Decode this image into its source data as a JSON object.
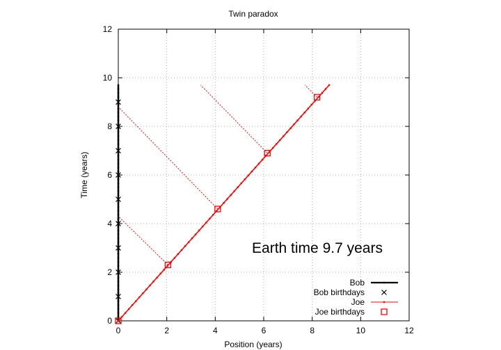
{
  "chart_data": {
    "type": "line",
    "title": "Twin paradox",
    "xlabel": "Position (years)",
    "ylabel": "Time (years)",
    "xlim": [
      0,
      12
    ],
    "ylim": [
      0,
      12
    ],
    "xticks": [
      0,
      2,
      4,
      6,
      8,
      10,
      12
    ],
    "yticks": [
      0,
      2,
      4,
      6,
      8,
      10,
      12
    ],
    "grid": true,
    "legend_position": "bottom-right",
    "annotation": "Earth time  9.7 years",
    "colors": {
      "bob": "#000000",
      "joe": "#ff0000"
    },
    "series": [
      {
        "name": "Bob",
        "style": "line",
        "color": "#000000",
        "x": [
          0,
          0
        ],
        "y": [
          0,
          9.7
        ]
      },
      {
        "name": "Bob birthdays",
        "style": "x-markers",
        "color": "#000000",
        "x": [
          0,
          0,
          0,
          0,
          0,
          0,
          0,
          0,
          0,
          0
        ],
        "y": [
          0,
          1,
          2,
          3,
          4,
          5,
          6,
          7,
          8,
          9
        ]
      },
      {
        "name": "Joe",
        "style": "line",
        "color": "#ff0000",
        "x": [
          0,
          8.7
        ],
        "y": [
          0,
          9.7
        ]
      },
      {
        "name": "Joe birthdays",
        "style": "square-markers",
        "color": "#ff0000",
        "x": [
          0,
          2.05,
          4.1,
          6.15,
          8.2
        ],
        "y": [
          0,
          2.3,
          4.6,
          6.9,
          9.2
        ]
      }
    ],
    "simultaneity_lines": [
      {
        "x": [
          2.05,
          0
        ],
        "y": [
          2.3,
          4.3
        ]
      },
      {
        "x": [
          4.1,
          0
        ],
        "y": [
          4.6,
          8.8
        ]
      },
      {
        "x": [
          6.15,
          3.4
        ],
        "y": [
          6.9,
          9.7
        ]
      },
      {
        "x": [
          8.2,
          7.7
        ],
        "y": [
          9.2,
          9.7
        ]
      }
    ]
  }
}
